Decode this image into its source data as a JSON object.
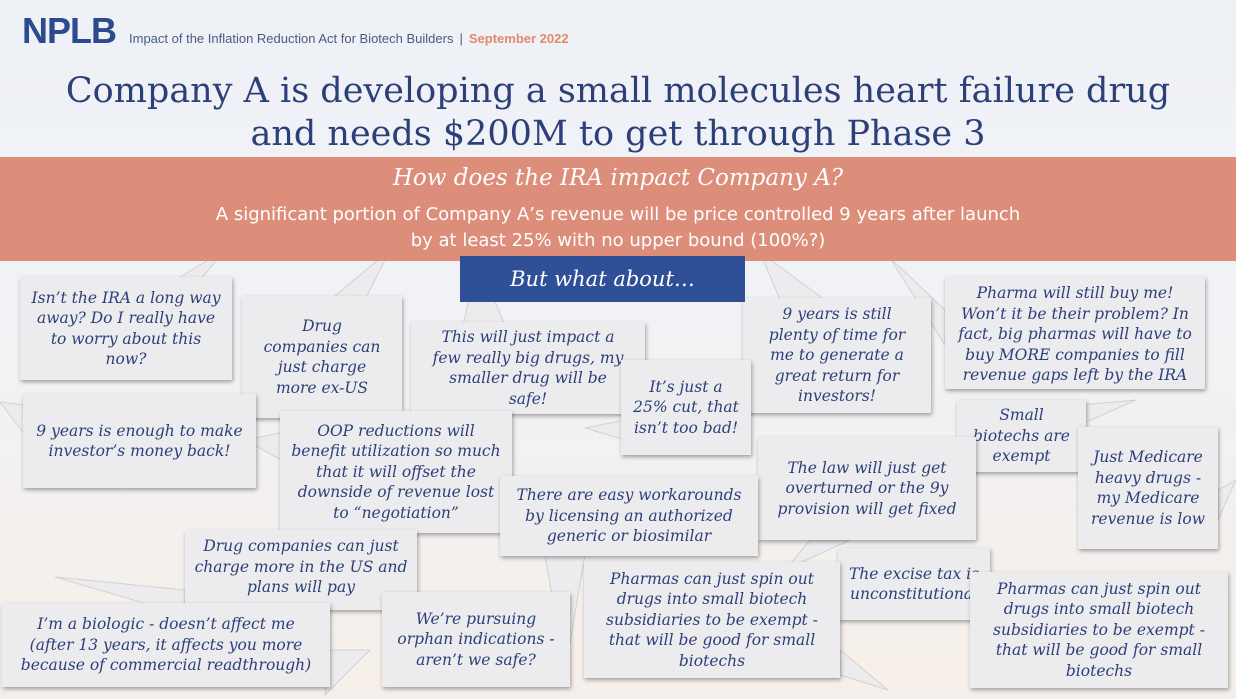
{
  "header": {
    "logo": "NPLB",
    "subtitle": "Impact of the Inflation Reduction Act for Biotech Builders",
    "separator": "|",
    "date": "September 2022"
  },
  "title": {
    "line1": "Company A is developing a small molecules heart failure drug",
    "line2": "and needs $200M to get through Phase 3"
  },
  "band": {
    "question": "How does the IRA impact Company A?",
    "answer_line1": "A significant portion of Company A’s revenue will be price controlled 9 years after launch",
    "answer_line2": "by at least 25% with no upper bound (100%?)"
  },
  "callout": "But what about…",
  "bubbles": [
    "Isn’t the IRA a long way away? Do I really have to worry about this now?",
    "Drug companies can just charge more ex-US",
    "This will just impact a few really big drugs, my smaller drug will be safe!",
    "9 years is still plenty of time for me to generate a great return for investors!",
    "Pharma will still buy me! Won’t it be their problem? In fact, big pharmas will have to buy MORE companies to fill revenue gaps left by the IRA",
    "It’s just a 25% cut, that isn’t too bad!",
    "9 years is enough to make investor’s money back!",
    "OOP reductions will benefit utilization so much that it will offset the downside of revenue lost to “negotiation”",
    "Small biotechs are exempt",
    "Just Medicare heavy drugs - my Medicare revenue is low",
    "The law will just get overturned or the 9y provision will get fixed",
    "There are easy workarounds by licensing an authorized generic or biosimilar",
    "Drug companies can just charge more in the US and plans will pay",
    "The excise tax is unconstitutional",
    "I’m a biologic - doesn’t affect me (after 13 years, it affects you more because of commercial readthrough)",
    "We’re pursuing orphan indications - aren’t we safe?",
    "Pharmas can just spin out drugs into small biotech subsidiaries to be exempt - that will be good for small biotechs",
    "Pharmas can just spin out drugs into small biotech subsidiaries to be exempt - that will be good for small biotechs"
  ],
  "colors": {
    "navy": "#2c3f78",
    "logo_blue": "#2c4a8e",
    "salmon_band": "#dc8e7b",
    "callout_blue": "#2f4f97",
    "date_orange": "#e28a6a",
    "bubble_fill": "#ececef"
  }
}
